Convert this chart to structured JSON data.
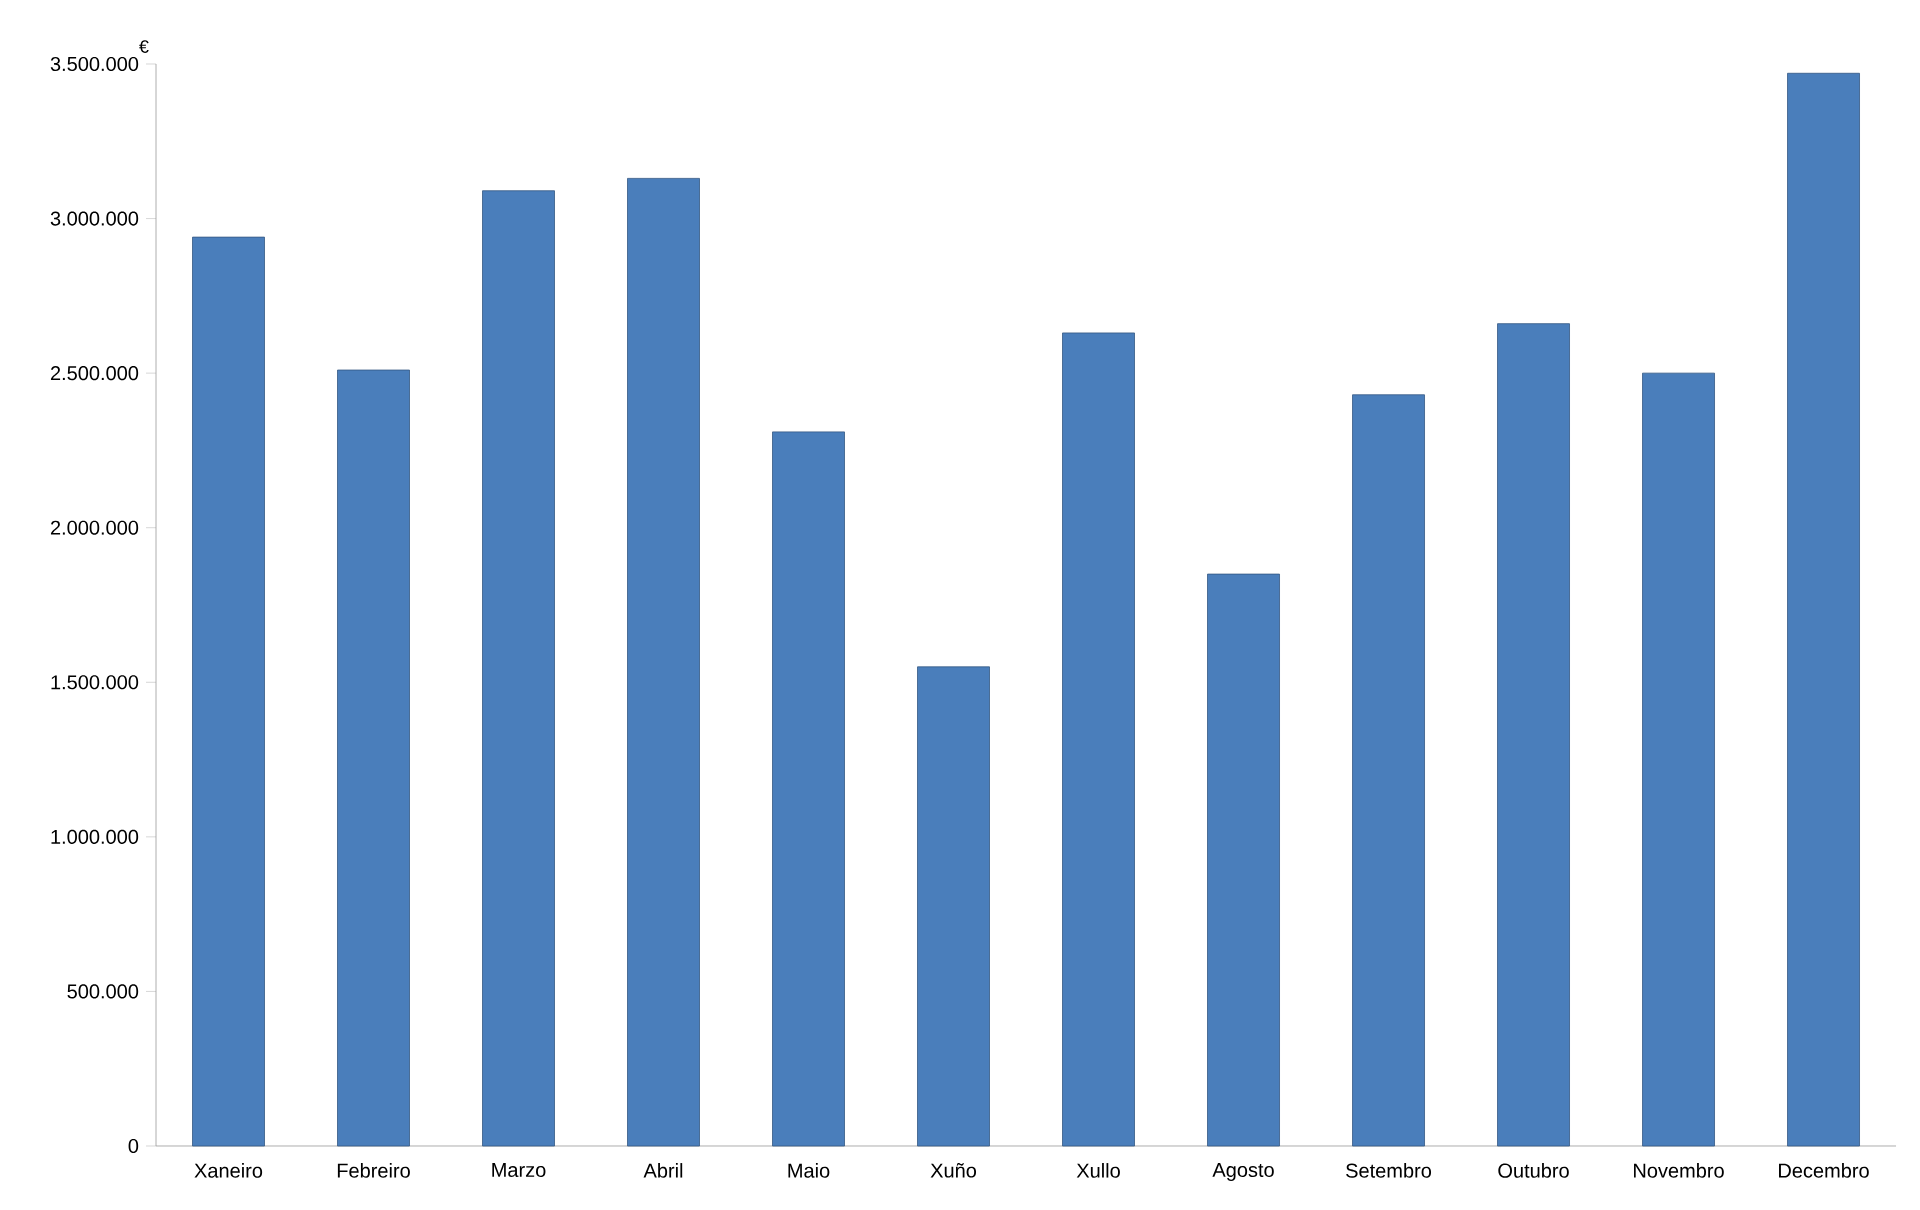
{
  "chart_data": {
    "type": "bar",
    "ylabel": "€",
    "categories": [
      "Xaneiro",
      "Febreiro",
      "Marzo",
      "Abril",
      "Maio",
      "Xuño",
      "Xullo",
      "Agosto",
      "Setembro",
      "Outubro",
      "Novembro",
      "Decembro"
    ],
    "values": [
      2940000,
      2510000,
      3090000,
      3130000,
      2310000,
      1550000,
      2630000,
      1850000,
      2430000,
      2660000,
      2500000,
      3470000
    ],
    "color": "#4a7ebb",
    "ylim": [
      0,
      3500000
    ],
    "yticks": [
      {
        "value": 0,
        "label": "0"
      },
      {
        "value": 500000,
        "label": "500.000"
      },
      {
        "value": 1000000,
        "label": "1.000.000"
      },
      {
        "value": 1500000,
        "label": "1.500.000"
      },
      {
        "value": 2000000,
        "label": "2.000.000"
      },
      {
        "value": 2500000,
        "label": "2.500.000"
      },
      {
        "value": 3000000,
        "label": "3.000.000"
      },
      {
        "value": 3500000,
        "label": "3.500.000"
      }
    ],
    "grid": false
  }
}
